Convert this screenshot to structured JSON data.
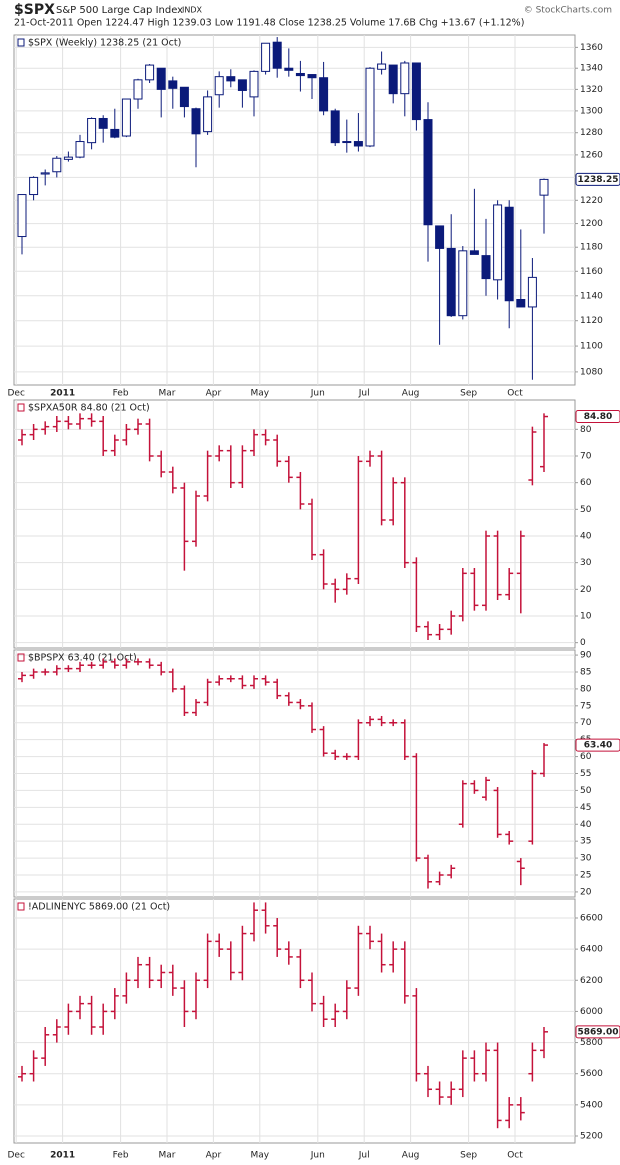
{
  "chart_data": [
    {
      "type": "candlestick",
      "title": "$SPX",
      "subtitle": "S&P 500 Large Cap Index",
      "exchange": "INDX",
      "info": "21-Oct-2011  Open 1224.47  High 1239.03  Low 1191.48  Close 1238.25  Volume 17.6B  Chg +13.67 (+1.12%)",
      "source": "© StockCharts.com",
      "legend": "$SPX (Weekly) 1238.25 (21 Oct)",
      "last_label": "1238.25",
      "color": "#0b1a7a",
      "log": true,
      "grid": true,
      "categories": [
        "Dec",
        null,
        null,
        null,
        "2011",
        null,
        null,
        null,
        null,
        "Feb",
        null,
        null,
        null,
        "Mar",
        null,
        null,
        null,
        "Apr",
        null,
        null,
        null,
        "May",
        null,
        null,
        null,
        null,
        "Jun",
        null,
        null,
        null,
        "Jul",
        null,
        null,
        null,
        "Aug",
        null,
        null,
        null,
        null,
        "Sep",
        null,
        null,
        null,
        "Oct",
        null,
        null
      ],
      "open": [
        1189,
        1225,
        1243,
        1245,
        1256,
        1258,
        1271,
        1293,
        1283,
        1277,
        1311,
        1329,
        1340,
        1328,
        1322,
        1302,
        1281,
        1315,
        1332,
        1329,
        1313,
        1337,
        1365,
        1340,
        1335,
        1334,
        1331,
        1300,
        1272,
        1272,
        1268,
        1339,
        1343,
        1316,
        1345,
        1292,
        1198,
        1179,
        1124,
        1177,
        1173,
        1153,
        1214,
        1137,
        1131,
        1224.47
      ],
      "high": [
        1225,
        1241,
        1247,
        1259,
        1263,
        1278,
        1294,
        1296,
        1302,
        1311,
        1330,
        1344,
        1340,
        1332,
        1322,
        1303,
        1319,
        1337,
        1339,
        1329,
        1338,
        1364,
        1370,
        1359,
        1347,
        1334,
        1346,
        1302,
        1292,
        1298,
        1341,
        1356,
        1343,
        1347,
        1345,
        1308,
        1198,
        1208,
        1181,
        1230,
        1204,
        1220,
        1220,
        1195,
        1171,
        1239.03
      ],
      "low": [
        1174,
        1220,
        1233,
        1240,
        1254,
        1257,
        1265,
        1271,
        1275,
        1276,
        1302,
        1326,
        1294,
        1302,
        1294,
        1249,
        1278,
        1303,
        1322,
        1303,
        1295,
        1334,
        1331,
        1332,
        1318,
        1311,
        1296,
        1268,
        1262,
        1263,
        1267,
        1334,
        1307,
        1295,
        1282,
        1168,
        1101,
        1123,
        1121,
        1174,
        1140,
        1137,
        1114,
        1131,
        1074,
        1191.48
      ],
      "close": [
        1225,
        1240,
        1244,
        1257,
        1258,
        1272,
        1293,
        1284,
        1276,
        1311,
        1329,
        1343,
        1320,
        1321,
        1304,
        1279,
        1313,
        1332,
        1328,
        1319,
        1337,
        1364,
        1340,
        1338,
        1333,
        1331,
        1300,
        1271,
        1272,
        1268,
        1340,
        1344,
        1316,
        1345,
        1292,
        1199,
        1179,
        1124,
        1177,
        1174,
        1154,
        1216,
        1136,
        1131,
        1155,
        1238.25
      ],
      "ylim": [
        1070,
        1372
      ],
      "yticks": [
        1080,
        1100,
        1120,
        1140,
        1160,
        1180,
        1200,
        1220,
        1240,
        1260,
        1280,
        1300,
        1320,
        1340,
        1360
      ]
    },
    {
      "type": "ohlc",
      "legend": "$SPXA50R 84.80 (21 Oct)",
      "last_label": "84.80",
      "color": "#c4123a",
      "grid": true,
      "open": [
        76,
        78,
        80,
        81,
        83,
        82,
        84,
        83,
        72,
        76,
        80,
        82,
        70,
        64,
        58,
        38,
        55,
        70,
        72,
        60,
        72,
        78,
        76,
        68,
        62,
        52,
        33,
        22,
        20,
        24,
        68,
        70,
        46,
        60,
        30,
        6,
        3,
        5,
        10,
        26,
        14,
        40,
        18,
        26,
        61,
        66
      ],
      "high": [
        80,
        82,
        83,
        85,
        85,
        86,
        86,
        85,
        78,
        82,
        84,
        84,
        72,
        66,
        60,
        57,
        72,
        74,
        74,
        74,
        80,
        80,
        78,
        70,
        64,
        54,
        35,
        24,
        26,
        70,
        72,
        72,
        62,
        62,
        32,
        8,
        7,
        12,
        28,
        28,
        42,
        42,
        28,
        42,
        81,
        86
      ],
      "low": [
        74,
        76,
        78,
        79,
        80,
        80,
        81,
        70,
        70,
        74,
        78,
        68,
        62,
        56,
        27,
        36,
        53,
        68,
        58,
        58,
        70,
        74,
        66,
        60,
        50,
        31,
        20,
        15,
        18,
        22,
        66,
        44,
        44,
        28,
        4,
        1,
        1,
        3,
        8,
        12,
        12,
        16,
        16,
        11,
        59,
        64
      ],
      "close": [
        78,
        80,
        81,
        83,
        82,
        84,
        83,
        72,
        76,
        80,
        82,
        70,
        64,
        58,
        38,
        55,
        70,
        72,
        60,
        72,
        78,
        76,
        68,
        62,
        52,
        33,
        22,
        20,
        24,
        68,
        70,
        46,
        60,
        30,
        6,
        3,
        5,
        10,
        26,
        14,
        40,
        18,
        26,
        40,
        79,
        84.8
      ],
      "ylim": [
        -2,
        91
      ],
      "yticks": [
        0,
        10,
        20,
        30,
        40,
        50,
        60,
        70,
        80
      ]
    },
    {
      "type": "ohlc",
      "legend": "$BPSPX 63.40 (21 Oct)",
      "last_label": "63.40",
      "color": "#c4123a",
      "grid": true,
      "open": [
        83,
        84,
        85,
        85,
        86,
        86,
        87,
        87,
        88,
        87,
        88,
        88,
        87,
        85,
        80,
        73,
        76,
        82,
        83,
        83,
        81,
        83,
        82,
        78,
        76,
        75,
        68,
        61,
        60,
        60,
        70,
        71,
        70,
        70,
        60,
        30,
        23,
        25,
        40,
        52,
        48,
        50,
        37,
        29,
        35,
        55
      ],
      "high": [
        85,
        86,
        86,
        87,
        87,
        88,
        88,
        89,
        89,
        89,
        89,
        89,
        88,
        86,
        81,
        77,
        83,
        84,
        84,
        84,
        84,
        84,
        83,
        79,
        77,
        76,
        69,
        62,
        61,
        71,
        72,
        72,
        71,
        71,
        61,
        31,
        26,
        28,
        53,
        53,
        54,
        51,
        38,
        30,
        56,
        64
      ],
      "low": [
        82,
        83,
        84,
        84,
        85,
        85,
        86,
        86,
        86,
        86,
        87,
        86,
        84,
        79,
        72,
        72,
        75,
        81,
        82,
        80,
        80,
        81,
        77,
        75,
        74,
        67,
        60,
        59,
        59,
        59,
        69,
        69,
        69,
        59,
        29,
        21,
        22,
        24,
        39,
        49,
        47,
        36,
        34,
        22,
        34,
        54
      ],
      "close": [
        84,
        85,
        85,
        86,
        86,
        87,
        87,
        88,
        87,
        88,
        88,
        87,
        85,
        80,
        73,
        76,
        82,
        83,
        83,
        81,
        83,
        82,
        78,
        76,
        75,
        68,
        61,
        60,
        60,
        70,
        71,
        70,
        70,
        60,
        30,
        23,
        25,
        27,
        52,
        50,
        53,
        37,
        35,
        27,
        55,
        63.4
      ],
      "ylim": [
        18.5,
        91.5
      ],
      "yticks": [
        20,
        25,
        30,
        35,
        40,
        45,
        50,
        55,
        60,
        65,
        70,
        75,
        80,
        85,
        90
      ]
    },
    {
      "type": "ohlc",
      "legend": "!ADLINENYC 5869.00 (21 Oct)",
      "last_label": "5869.00",
      "color": "#c4123a",
      "grid": true,
      "categories": [
        "Dec",
        null,
        null,
        null,
        "2011",
        null,
        null,
        null,
        null,
        "Feb",
        null,
        null,
        null,
        "Mar",
        null,
        null,
        null,
        "Apr",
        null,
        null,
        null,
        "May",
        null,
        null,
        null,
        null,
        "Jun",
        null,
        null,
        null,
        "Jul",
        null,
        null,
        null,
        "Aug",
        null,
        null,
        null,
        null,
        "Sep",
        null,
        null,
        null,
        "Oct",
        null,
        null
      ],
      "open": [
        5580,
        5600,
        5700,
        5850,
        5900,
        6000,
        6050,
        5900,
        6000,
        6100,
        6200,
        6300,
        6200,
        6250,
        6150,
        6000,
        6200,
        6450,
        6400,
        6250,
        6500,
        6650,
        6550,
        6400,
        6350,
        6200,
        6050,
        5950,
        6000,
        6150,
        6500,
        6450,
        6300,
        6400,
        6100,
        5600,
        5500,
        5450,
        5500,
        5700,
        5600,
        5750,
        5300,
        5400,
        5600,
        5750
      ],
      "high": [
        5650,
        5750,
        5900,
        5950,
        6050,
        6100,
        6100,
        6050,
        6150,
        6250,
        6350,
        6350,
        6300,
        6300,
        6200,
        6250,
        6500,
        6500,
        6450,
        6550,
        6700,
        6700,
        6600,
        6450,
        6400,
        6250,
        6100,
        6050,
        6200,
        6550,
        6550,
        6500,
        6450,
        6450,
        6150,
        5650,
        5550,
        5550,
        5750,
        5750,
        5800,
        5800,
        5450,
        5450,
        5800,
        5900
      ],
      "low": [
        5550,
        5550,
        5650,
        5800,
        5850,
        5950,
        5850,
        5850,
        5950,
        6050,
        6150,
        6150,
        6150,
        6100,
        5900,
        5950,
        6150,
        6350,
        6200,
        6200,
        6450,
        6500,
        6350,
        6300,
        6150,
        6000,
        5900,
        5900,
        5950,
        6100,
        6400,
        6250,
        6250,
        6050,
        5550,
        5450,
        5400,
        5400,
        5450,
        5550,
        5550,
        5250,
        5250,
        5300,
        5550,
        5700
      ],
      "close": [
        5600,
        5700,
        5850,
        5900,
        6000,
        6050,
        5900,
        6000,
        6100,
        6200,
        6300,
        6200,
        6250,
        6150,
        6000,
        6200,
        6450,
        6400,
        6250,
        6500,
        6650,
        6550,
        6400,
        6350,
        6200,
        6050,
        5950,
        6000,
        6150,
        6500,
        6450,
        6300,
        6400,
        6100,
        5600,
        5500,
        5450,
        5500,
        5700,
        5600,
        5750,
        5300,
        5400,
        5350,
        5750,
        5869
      ],
      "ylim": [
        5155,
        6722
      ],
      "yticks": [
        5200,
        5400,
        5600,
        5800,
        6000,
        6200,
        6400,
        6600
      ]
    }
  ]
}
